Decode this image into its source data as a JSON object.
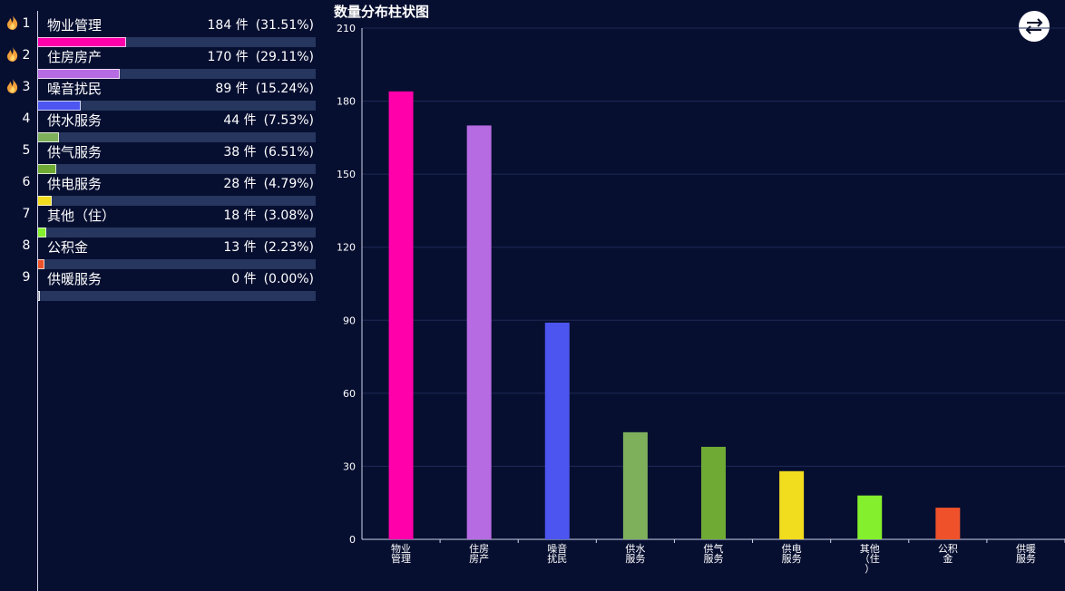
{
  "ranking": [
    {
      "rank": "1",
      "name": "物业管理",
      "count": "184 件",
      "pct": "(31.51%)",
      "value": 184,
      "color": "#ff00aa",
      "hot": true
    },
    {
      "rank": "2",
      "name": "住房房产",
      "count": "170 件",
      "pct": "(29.11%)",
      "value": 170,
      "color": "#b66be2",
      "hot": true
    },
    {
      "rank": "3",
      "name": "噪音扰民",
      "count": "89 件",
      "pct": "(15.24%)",
      "value": 89,
      "color": "#4c55ef",
      "hot": true
    },
    {
      "rank": "4",
      "name": "供水服务",
      "count": "44 件",
      "pct": "(7.53%)",
      "value": 44,
      "color": "#7eb05c",
      "hot": false
    },
    {
      "rank": "5",
      "name": "供气服务",
      "count": "38 件",
      "pct": "(6.51%)",
      "value": 38,
      "color": "#6faa34",
      "hot": false
    },
    {
      "rank": "6",
      "name": "供电服务",
      "count": "28 件",
      "pct": "(4.79%)",
      "value": 28,
      "color": "#f2dc1e",
      "hot": false
    },
    {
      "rank": "7",
      "name": "其他（住）",
      "count": "18 件",
      "pct": "(3.08%)",
      "value": 18,
      "color": "#84ef2c",
      "hot": false
    },
    {
      "rank": "8",
      "name": "公积金",
      "count": "13 件",
      "pct": "(2.23%)",
      "value": 13,
      "color": "#ef522b",
      "hot": false
    },
    {
      "rank": "9",
      "name": "供暖服务",
      "count": "0 件",
      "pct": "(0.00%)",
      "value": 0,
      "color": "#9aa0b5",
      "hot": false
    }
  ],
  "switch_icon": "swap-arrows-icon",
  "chart_data": {
    "type": "bar",
    "title": "数量分布柱状图",
    "categories": [
      "物业管理",
      "住房房产",
      "噪音扰民",
      "供水服务",
      "供气服务",
      "供电服务",
      "其他（住）",
      "公积金",
      "供暖服务"
    ],
    "category_tick_labels": [
      [
        "物业",
        "管理"
      ],
      [
        "住房",
        "房产"
      ],
      [
        "噪音",
        "扰民"
      ],
      [
        "供水",
        "服务"
      ],
      [
        "供气",
        "服务"
      ],
      [
        "供电",
        "服务"
      ],
      [
        "其他",
        "（住",
        "）"
      ],
      [
        "公积",
        "金"
      ],
      [
        "供暖",
        "服务"
      ]
    ],
    "values": [
      184,
      170,
      89,
      44,
      38,
      28,
      18,
      13,
      0
    ],
    "colors": [
      "#ff00aa",
      "#b66be2",
      "#4c55ef",
      "#7eb05c",
      "#6faa34",
      "#f2dc1e",
      "#84ef2c",
      "#ef522b",
      "#9aa0b5"
    ],
    "ylim": [
      0,
      210
    ],
    "yticks": [
      0,
      30,
      60,
      90,
      120,
      150,
      180,
      210
    ],
    "grid": true,
    "xlabel": "",
    "ylabel": ""
  }
}
